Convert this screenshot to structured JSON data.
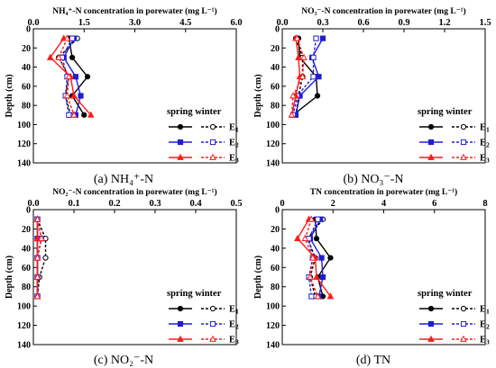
{
  "figure": {
    "depth_label": "Depth (cm)",
    "legend": {
      "header": "spring winter",
      "items": [
        {
          "key": "E",
          "sub": "1"
        },
        {
          "key": "E",
          "sub": "2"
        },
        {
          "key": "E",
          "sub": "3"
        }
      ]
    },
    "colors": {
      "E1": "#000000",
      "E2": "#1f1fd1",
      "E3": "#ff1a1a"
    }
  },
  "chart_data": [
    {
      "type": "line",
      "caption": "(a) NH₄⁺-N",
      "title": "NH₄⁺-N concentration in porewater (mg L⁻¹)",
      "xlabel": "NH₄⁺-N concentration in porewater (mg L⁻¹)",
      "ylabel": "Depth (cm)",
      "xlim": [
        0,
        6.0
      ],
      "xticks": [
        "0.0",
        "1.5",
        "3.0",
        "4.5",
        "6.0"
      ],
      "xticks_values": [
        0,
        1.5,
        3.0,
        4.5,
        6.0
      ],
      "ylim": [
        0,
        140
      ],
      "yticks": [
        "0",
        "20",
        "40",
        "60",
        "80",
        "100",
        "120",
        "140"
      ],
      "yticks_values": [
        0,
        20,
        40,
        60,
        80,
        100,
        120,
        140
      ],
      "depth": [
        10,
        30,
        50,
        70,
        90
      ],
      "series": [
        {
          "name": "E1 spring",
          "color": "#000000",
          "marker": "circle",
          "filled": true,
          "dashed": false,
          "values": [
            1.05,
            1.15,
            1.6,
            1.15,
            1.5
          ]
        },
        {
          "name": "E1 winter",
          "color": "#000000",
          "marker": "circle",
          "filled": false,
          "dashed": true,
          "values": [
            1.3,
            0.75,
            1.05,
            0.95,
            1.1
          ]
        },
        {
          "name": "E2 spring",
          "color": "#1f1fd1",
          "marker": "square",
          "filled": true,
          "dashed": false,
          "values": [
            1.2,
            0.9,
            1.25,
            1.4,
            1.25
          ]
        },
        {
          "name": "E2 winter",
          "color": "#1f1fd1",
          "marker": "square",
          "filled": false,
          "dashed": true,
          "values": [
            1.15,
            0.85,
            1.0,
            0.95,
            1.05
          ]
        },
        {
          "name": "E3 spring",
          "color": "#ff1a1a",
          "marker": "triangle",
          "filled": true,
          "dashed": false,
          "values": [
            0.9,
            0.5,
            1.1,
            1.2,
            1.7
          ]
        },
        {
          "name": "E3 winter",
          "color": "#ff1a1a",
          "marker": "triangle",
          "filled": false,
          "dashed": true,
          "values": [
            1.0,
            0.75,
            1.05,
            1.0,
            1.2
          ]
        }
      ]
    },
    {
      "type": "line",
      "caption": "(b) NO₃⁻-N",
      "title": "NO₃⁻-N concentration in porewater (mg L⁻¹)",
      "xlabel": "NO₃⁻-N concentration in porewater (mg L⁻¹)",
      "ylabel": "Depth (cm)",
      "xlim": [
        0,
        1.5
      ],
      "xticks": [
        "0.0",
        "0.3",
        "0.6",
        "0.9",
        "1.2",
        "1.5"
      ],
      "xticks_values": [
        0,
        0.3,
        0.6,
        0.9,
        1.2,
        1.5
      ],
      "ylim": [
        0,
        140
      ],
      "yticks": [
        "0",
        "20",
        "40",
        "60",
        "80",
        "100",
        "120",
        "140"
      ],
      "yticks_values": [
        0,
        20,
        40,
        60,
        80,
        100,
        120,
        140
      ],
      "depth": [
        10,
        30,
        50,
        70,
        90
      ],
      "series": [
        {
          "name": "E1 spring",
          "color": "#000000",
          "marker": "circle",
          "filled": true,
          "dashed": false,
          "values": [
            0.12,
            0.13,
            0.25,
            0.26,
            0.08
          ]
        },
        {
          "name": "E1 winter",
          "color": "#000000",
          "marker": "circle",
          "filled": false,
          "dashed": true,
          "values": [
            0.1,
            0.15,
            0.15,
            0.12,
            0.1
          ]
        },
        {
          "name": "E2 spring",
          "color": "#1f1fd1",
          "marker": "square",
          "filled": true,
          "dashed": false,
          "values": [
            0.3,
            0.22,
            0.27,
            0.13,
            0.1
          ]
        },
        {
          "name": "E2 winter",
          "color": "#1f1fd1",
          "marker": "square",
          "filled": false,
          "dashed": true,
          "values": [
            0.25,
            0.23,
            0.23,
            0.11,
            0.08
          ]
        },
        {
          "name": "E3 spring",
          "color": "#ff1a1a",
          "marker": "triangle",
          "filled": true,
          "dashed": false,
          "values": [
            0.1,
            0.12,
            0.13,
            0.1,
            0.07
          ]
        },
        {
          "name": "E3 winter",
          "color": "#ff1a1a",
          "marker": "triangle",
          "filled": false,
          "dashed": true,
          "values": [
            0.11,
            0.16,
            0.15,
            0.08,
            0.07
          ]
        }
      ]
    },
    {
      "type": "line",
      "caption": "(c) NO₂⁻-N",
      "title": "NO₂⁻-N concentration in porewater (mg L⁻¹)",
      "xlabel": "NO₂⁻-N concentration in porewater (mg L⁻¹)",
      "ylabel": "Depth (cm)",
      "xlim": [
        0,
        0.5
      ],
      "xticks": [
        "0.0",
        "0.1",
        "0.2",
        "0.3",
        "0.4",
        "0.5"
      ],
      "xticks_values": [
        0,
        0.1,
        0.2,
        0.3,
        0.4,
        0.5
      ],
      "ylim": [
        0,
        140
      ],
      "yticks": [
        "0",
        "20",
        "40",
        "60",
        "80",
        "100",
        "120",
        "140"
      ],
      "yticks_values": [
        0,
        20,
        40,
        60,
        80,
        100,
        120,
        140
      ],
      "depth": [
        10,
        30,
        50,
        70,
        90
      ],
      "series": [
        {
          "name": "E1 spring",
          "color": "#000000",
          "marker": "circle",
          "filled": true,
          "dashed": false,
          "values": [
            0.01,
            0.01,
            0.01,
            0.01,
            0.01
          ]
        },
        {
          "name": "E1 winter",
          "color": "#000000",
          "marker": "circle",
          "filled": false,
          "dashed": true,
          "values": [
            0.01,
            0.03,
            0.03,
            0.015,
            0.01
          ]
        },
        {
          "name": "E2 spring",
          "color": "#1f1fd1",
          "marker": "square",
          "filled": true,
          "dashed": false,
          "values": [
            0.01,
            0.01,
            0.01,
            0.01,
            0.01
          ]
        },
        {
          "name": "E2 winter",
          "color": "#1f1fd1",
          "marker": "square",
          "filled": false,
          "dashed": true,
          "values": [
            0.01,
            0.02,
            0.01,
            0.01,
            0.01
          ]
        },
        {
          "name": "E3 spring",
          "color": "#ff1a1a",
          "marker": "triangle",
          "filled": true,
          "dashed": false,
          "values": [
            0.01,
            0.01,
            0.01,
            0.01,
            0.01
          ]
        },
        {
          "name": "E3 winter",
          "color": "#ff1a1a",
          "marker": "triangle",
          "filled": false,
          "dashed": true,
          "values": [
            0.01,
            0.02,
            0.01,
            0.01,
            0.01
          ]
        }
      ]
    },
    {
      "type": "line",
      "caption": "(d) TN",
      "title": "TN concentration in porewater (mg L⁻¹)",
      "xlabel": "TN concentration in porewater (mg L⁻¹)",
      "ylabel": "Depth (cm)",
      "xlim": [
        0,
        8
      ],
      "xticks": [
        "0",
        "2",
        "4",
        "6",
        "8"
      ],
      "xticks_values": [
        0,
        2,
        4,
        6,
        8
      ],
      "ylim": [
        0,
        140
      ],
      "yticks": [
        "0",
        "20",
        "40",
        "60",
        "80",
        "100",
        "120",
        "140"
      ],
      "yticks_values": [
        0,
        20,
        40,
        60,
        80,
        100,
        120,
        140
      ],
      "depth": [
        10,
        30,
        50,
        70,
        90
      ],
      "series": [
        {
          "name": "E1 spring",
          "color": "#000000",
          "marker": "circle",
          "filled": true,
          "dashed": false,
          "values": [
            1.3,
            1.35,
            1.9,
            1.4,
            1.6
          ]
        },
        {
          "name": "E1 winter",
          "color": "#000000",
          "marker": "circle",
          "filled": false,
          "dashed": true,
          "values": [
            1.6,
            1.0,
            1.3,
            1.1,
            1.3
          ]
        },
        {
          "name": "E2 spring",
          "color": "#1f1fd1",
          "marker": "square",
          "filled": true,
          "dashed": false,
          "values": [
            1.5,
            1.1,
            1.55,
            1.6,
            1.45
          ]
        },
        {
          "name": "E2 winter",
          "color": "#1f1fd1",
          "marker": "square",
          "filled": false,
          "dashed": true,
          "values": [
            1.4,
            1.05,
            1.2,
            1.05,
            1.15
          ]
        },
        {
          "name": "E3 spring",
          "color": "#ff1a1a",
          "marker": "triangle",
          "filled": true,
          "dashed": false,
          "values": [
            1.05,
            0.6,
            1.3,
            1.35,
            1.9
          ]
        },
        {
          "name": "E3 winter",
          "color": "#ff1a1a",
          "marker": "triangle",
          "filled": false,
          "dashed": true,
          "values": [
            1.15,
            0.9,
            1.2,
            1.1,
            1.4
          ]
        }
      ]
    }
  ]
}
